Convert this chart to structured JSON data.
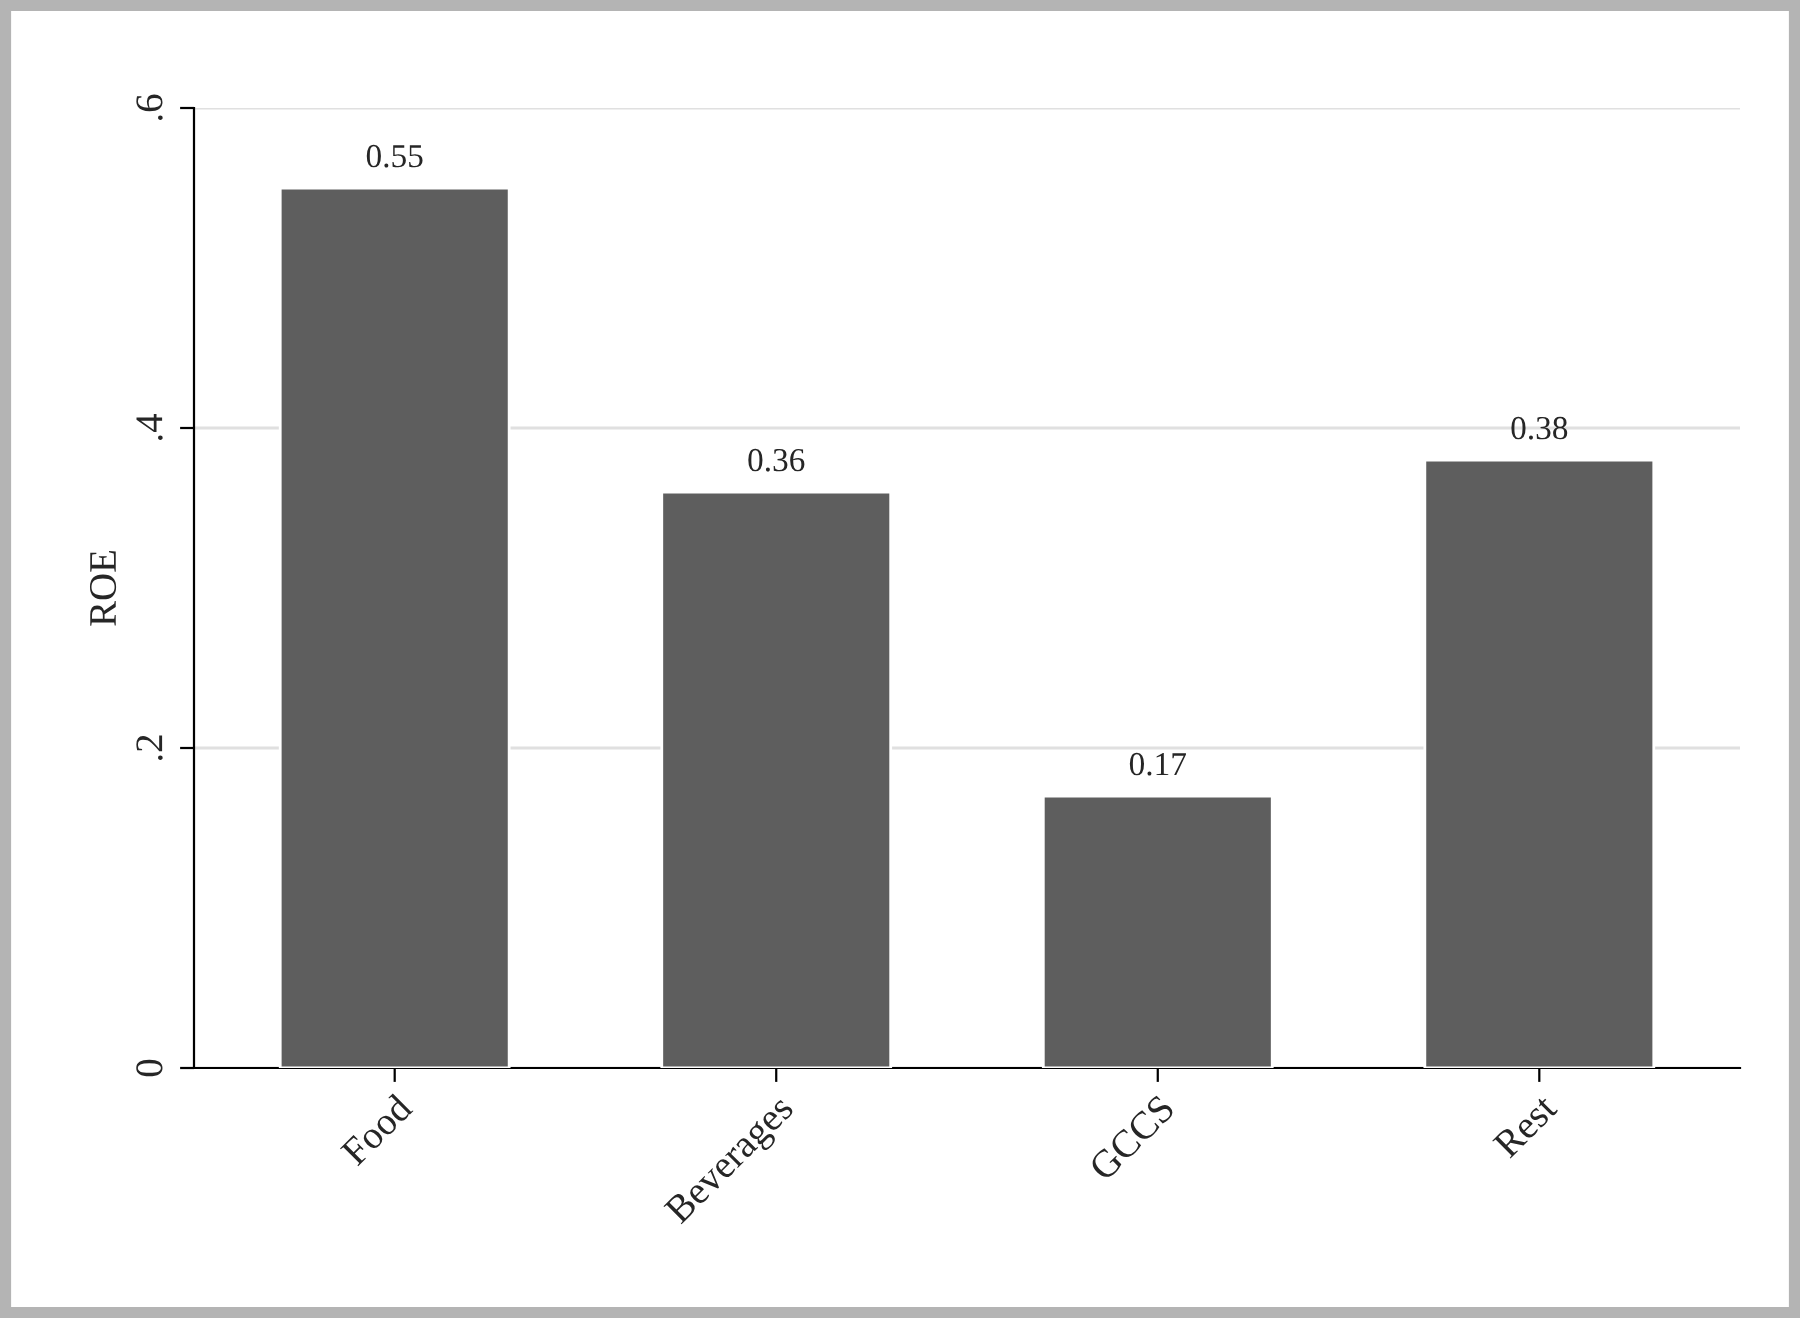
{
  "chart_data": {
    "type": "bar",
    "ylabel": "ROE",
    "categories": [
      "Food",
      "Beverages",
      "GCCS",
      "Rest"
    ],
    "values": [
      0.55,
      0.36,
      0.17,
      0.38
    ],
    "color": "#5e5e5e",
    "value_labels": [
      "0.55",
      "0.36",
      "0.17",
      "0.38"
    ],
    "ylim": [
      0,
      0.6
    ],
    "yticks": [
      {
        "value": 0,
        "label": "0"
      },
      {
        "value": 0.2,
        "label": ".2"
      },
      {
        "value": 0.4,
        "label": ".4"
      },
      {
        "value": 0.6,
        "label": ".6"
      }
    ],
    "grid": "y",
    "legend": false
  }
}
